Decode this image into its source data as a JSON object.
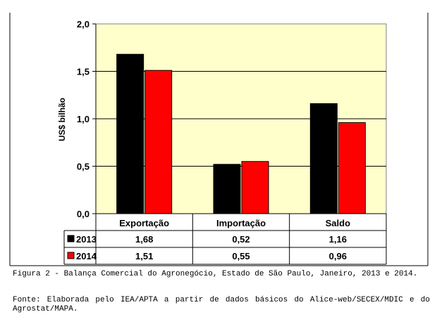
{
  "chart_data": {
    "type": "bar",
    "categories": [
      "Exportação",
      "Importação",
      "Saldo"
    ],
    "series": [
      {
        "name": "2013",
        "values": [
          1.68,
          0.52,
          1.16
        ],
        "labels": [
          "1,68",
          "0,52",
          "1,16"
        ],
        "color": "#000000"
      },
      {
        "name": "2014",
        "values": [
          1.51,
          0.55,
          0.96
        ],
        "labels": [
          "1,51",
          "0,55",
          "0,96"
        ],
        "color": "#ff0000"
      }
    ],
    "ylabel": "US$ bilhão",
    "ylim": [
      0,
      2.0
    ],
    "yticks": [
      0,
      0.5,
      1.0,
      1.5,
      2.0
    ],
    "ytick_labels": [
      "0,0",
      "0,5",
      "1,0",
      "1,5",
      "2,0"
    ],
    "grid": true,
    "plot_background": "#ffffcc",
    "data_table": true
  },
  "caption": "Figura 2 - Balança Comercial do Agronegócio, Estado de São Paulo, Janeiro, 2013 e 2014.",
  "source": "Fonte: Elaborada pelo IEA/APTA a partir de dados básicos do Alice-web/SECEX/MDIC e do Agrostat/MAPA."
}
